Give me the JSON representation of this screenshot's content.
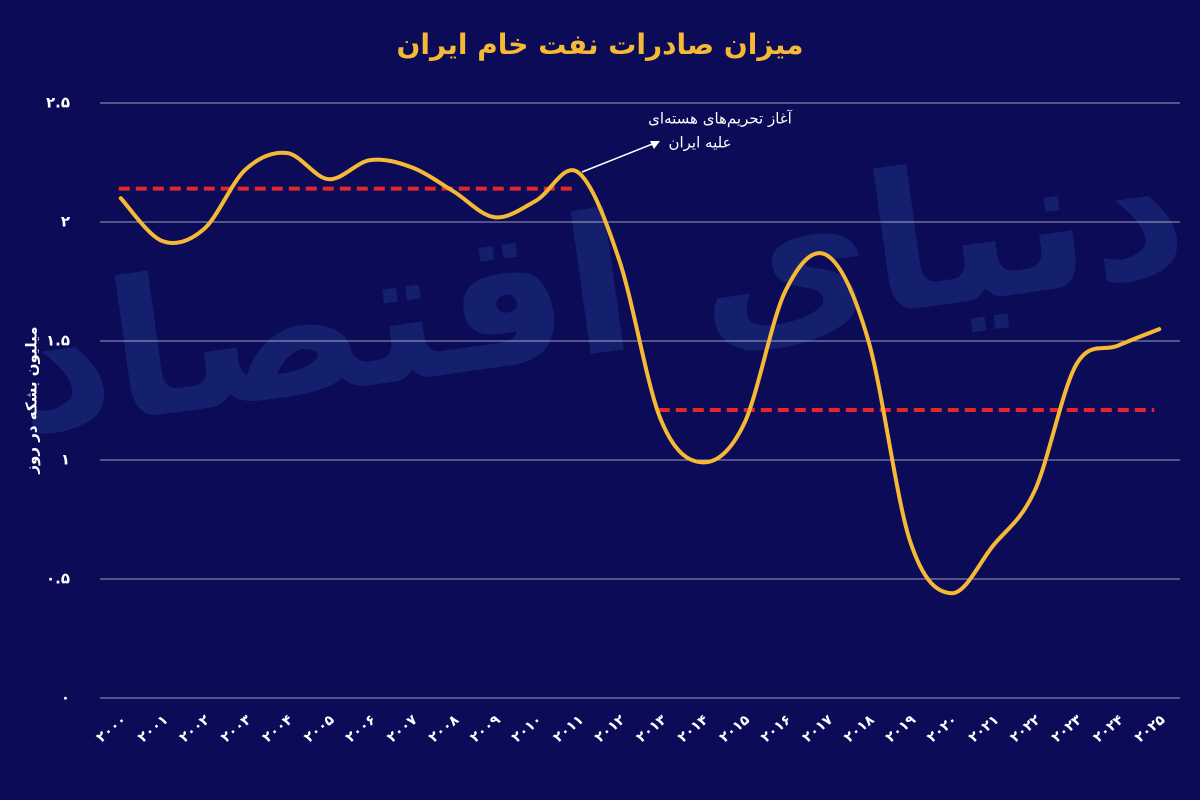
{
  "chart_data": {
    "type": "line",
    "title": "میزان صادرات نفت خام ایران",
    "y_label": "میلیون بشکه در روز",
    "watermark": "دنیای اقتصاد",
    "annotation": [
      "آغاز تحریم‌های هسته‌ای",
      "علیه ایران"
    ],
    "categories": [
      "۲۰۰۰",
      "۲۰۰۱",
      "۲۰۰۲",
      "۲۰۰۳",
      "۲۰۰۴",
      "۲۰۰۵",
      "۲۰۰۶",
      "۲۰۰۷",
      "۲۰۰۸",
      "۲۰۰۹",
      "۲۰۱۰",
      "۲۰۱۱",
      "۲۰۱۲",
      "۲۰۱۳",
      "۲۰۱۴",
      "۲۰۱۵",
      "۲۰۱۶",
      "۲۰۱۷",
      "۲۰۱۸",
      "۲۰۱۹",
      "۲۰۲۰",
      "۲۰۲۱",
      "۲۰۲۲",
      "۲۰۲۳",
      "۲۰۲۴",
      "۲۰۲۵"
    ],
    "series": [
      {
        "color": "#f6b935",
        "values": [
          2.1,
          1.92,
          1.97,
          2.22,
          2.29,
          2.18,
          2.26,
          2.23,
          2.13,
          2.02,
          2.09,
          2.21,
          1.84,
          1.17,
          0.99,
          1.15,
          1.71,
          1.86,
          1.5,
          0.66,
          0.44,
          0.64,
          0.87,
          1.4,
          1.48,
          1.55
        ]
      }
    ],
    "reference_lines": [
      {
        "value": 2.14,
        "categories": [
          0,
          11
        ],
        "color": "#e3262b"
      },
      {
        "value": 1.21,
        "categories": [
          13,
          25
        ],
        "color": "#e3262b"
      }
    ],
    "ylim": [
      0,
      2.5
    ],
    "yticks": [
      {
        "value": 0,
        "label": "۰"
      },
      {
        "value": 0.5,
        "label": "۰.۵"
      },
      {
        "value": 1,
        "label": "۱"
      },
      {
        "value": 1.5,
        "label": "۱.۵"
      },
      {
        "value": 2,
        "label": "۲"
      },
      {
        "value": 2.5,
        "label": "۲.۵"
      }
    ],
    "grid": true
  }
}
